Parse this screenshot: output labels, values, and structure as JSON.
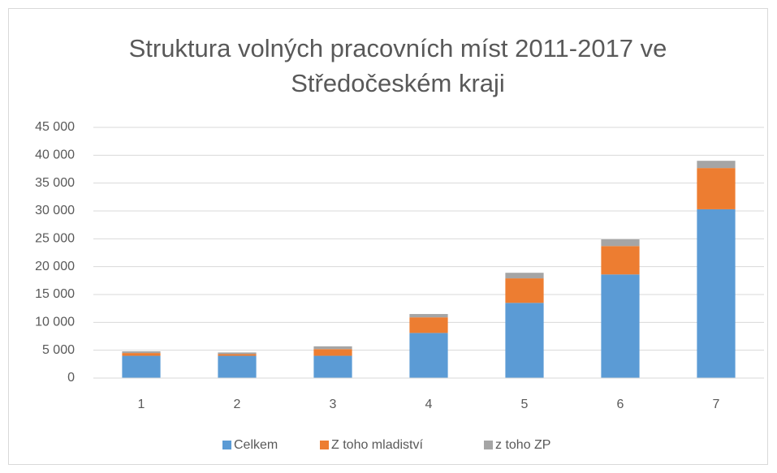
{
  "chart_data": {
    "type": "stacked_bar",
    "title": [
      "Struktura volných pracovních míst 2011-2017 ve",
      "Středočeském kraji"
    ],
    "categories": [
      "1",
      "2",
      "3",
      "4",
      "5",
      "6",
      "7"
    ],
    "series": [
      {
        "name": "Celkem",
        "color": "#5b9bd5",
        "values": [
          4000,
          4000,
          4000,
          8100,
          13500,
          18600,
          30300
        ]
      },
      {
        "name": "Z toho mladiství",
        "color": "#ed7d31",
        "values": [
          500,
          300,
          1200,
          2800,
          4400,
          5100,
          7400
        ]
      },
      {
        "name": "z toho ZP",
        "color": "#a5a5a5",
        "values": [
          300,
          300,
          500,
          600,
          1000,
          1200,
          1300
        ]
      }
    ],
    "ylim": [
      0,
      45000
    ],
    "yticks": [
      0,
      {
        "value": 5000,
        "label": "5 000"
      },
      {
        "value": 10000,
        "label": "10 000"
      },
      {
        "value": 15000,
        "label": "15 000"
      },
      {
        "value": 20000,
        "label": "20 000"
      },
      {
        "value": 25000,
        "label": "25 000"
      },
      {
        "value": 30000,
        "label": "30 000"
      },
      {
        "value": 35000,
        "label": "35 000"
      },
      {
        "value": 40000,
        "label": "40 000"
      },
      {
        "value": 45000,
        "label": "45 000"
      }
    ],
    "grid": true,
    "legend": "bottom"
  }
}
